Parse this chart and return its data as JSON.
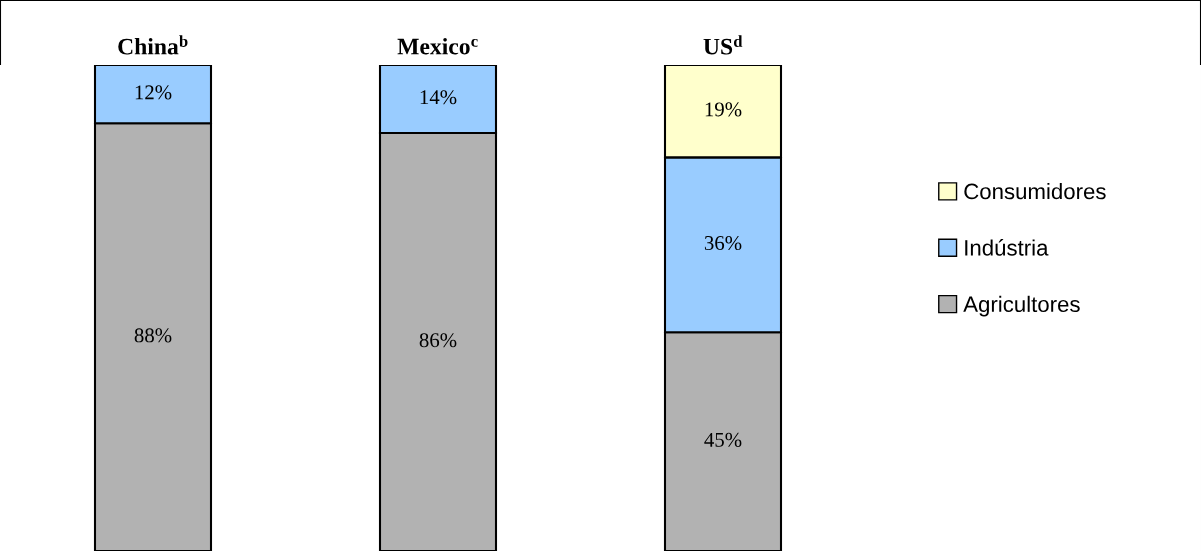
{
  "chart_data": {
    "type": "bar",
    "stacked": true,
    "categories": [
      "China$^{b}$",
      "Mexico$^{c}$",
      "US$^{d}$"
    ],
    "series": [
      {
        "name": "Agricultores",
        "color": "#b2b2b2",
        "values": [
          88,
          86,
          45
        ],
        "value_labels": [
          "88%",
          "86%",
          "45%"
        ]
      },
      {
        "name": "Indústria",
        "color": "#99ccff",
        "values": [
          12,
          14,
          36
        ],
        "value_labels": [
          "12%",
          "14%",
          "36%"
        ]
      },
      {
        "name": "Consumidores",
        "color": "#ffffcc",
        "values": [
          null,
          null,
          19
        ],
        "value_labels": [
          null,
          null,
          "19%"
        ]
      }
    ],
    "ylim": [
      0,
      100
    ],
    "tick_labels": "x",
    "grid": false,
    "legend": "right"
  }
}
